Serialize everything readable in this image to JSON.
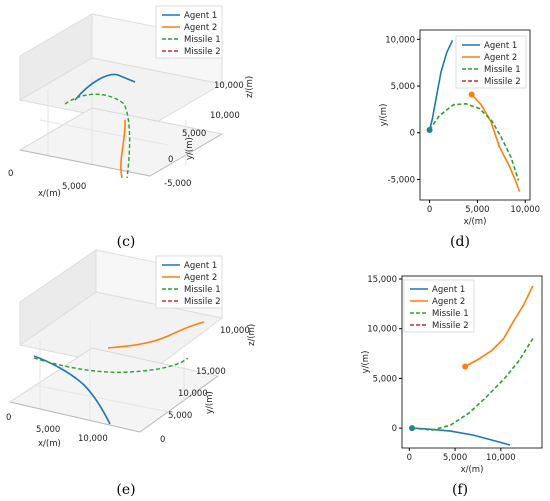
{
  "colors": {
    "agent1": "#1f77b4",
    "agent2": "#ff7f0e",
    "missile1": "#2ca02c",
    "missile2": "#d62728"
  },
  "panels": [
    {
      "letter": "(c)",
      "type": "line3d",
      "legend": [
        "Agent 1",
        "Agent 2",
        "Missile 1",
        "Missile 2"
      ],
      "xlabel": "x/(m)",
      "ylabel": "y/(m)",
      "zlabel": "z/(m)",
      "xticks": [
        "0",
        "5,000"
      ],
      "yticks": [
        "-5,000",
        "0",
        "5,000",
        "10,000"
      ],
      "zticks": [
        "10,000"
      ]
    },
    {
      "letter": "(d)",
      "type": "line",
      "legend": [
        "Agent 1",
        "Agent 2",
        "Missile 1",
        "Missile 2"
      ],
      "xlabel": "x/(m)",
      "ylabel": "y/(m)",
      "xticks": [
        "0",
        "5,000",
        "10,000"
      ],
      "yticks": [
        "10,000",
        "5,000",
        "0",
        "-5,000"
      ]
    },
    {
      "letter": "(e)",
      "type": "line3d",
      "legend": [
        "Agent 1",
        "Agent 2",
        "Missile 1",
        "Missile 2"
      ],
      "xlabel": "x/(m)",
      "ylabel": "y/(m)",
      "zlabel": "z/(m)",
      "xticks": [
        "0",
        "5,000",
        "10,000"
      ],
      "yticks": [
        "0",
        "5,000",
        "10,000",
        "15,000"
      ],
      "zticks": [
        "10,000"
      ]
    },
    {
      "letter": "(f)",
      "type": "line",
      "legend": [
        "Agent 1",
        "Agent 2",
        "Missile 1",
        "Missile 2"
      ],
      "xlabel": "x/(m)",
      "ylabel": "y/(m)",
      "xticks": [
        "0",
        "5,000",
        "10,000"
      ],
      "yticks": [
        "15,000",
        "10,000",
        "5,000",
        "0"
      ]
    }
  ],
  "chart_data": [
    {
      "type": "line",
      "title": "",
      "xlabel": "x/(m)",
      "ylabel": "y/(m)",
      "xlim": [
        -1000,
        10500
      ],
      "ylim": [
        -7200,
        11000
      ],
      "series": [
        {
          "name": "Agent 1",
          "x": [
            0,
            300,
            700,
            1200,
            1800,
            2400
          ],
          "y": [
            300,
            1500,
            3800,
            6500,
            8600,
            9900
          ],
          "start_marker": true
        },
        {
          "name": "Agent 2",
          "x": [
            4400,
            5400,
            6400,
            7300,
            8300,
            8900,
            9400
          ],
          "y": [
            4100,
            3000,
            1200,
            -1500,
            -3500,
            -4900,
            -6300
          ],
          "start_marker": true
        },
        {
          "name": "Missile 1",
          "x": [
            0,
            1000,
            2500,
            3800,
            5200,
            6500,
            7500,
            8500,
            9300
          ],
          "y": [
            300,
            1800,
            3000,
            3100,
            2600,
            1300,
            -500,
            -2600,
            -5100
          ],
          "dashed": true
        },
        {
          "name": "Missile 2",
          "x": [],
          "y": [],
          "dashed": true
        }
      ]
    },
    {
      "type": "line",
      "title": "",
      "xlabel": "x/(m)",
      "ylabel": "y/(m)",
      "xlim": [
        -800,
        14500
      ],
      "ylim": [
        -2000,
        15300
      ],
      "series": [
        {
          "name": "Agent 1",
          "x": [
            300,
            2000,
            4500,
            7000,
            9000,
            11000
          ],
          "y": [
            0,
            -100,
            -300,
            -700,
            -1200,
            -1700
          ],
          "start_marker": true
        },
        {
          "name": "Agent 2",
          "x": [
            6100,
            7500,
            9000,
            10300,
            11300,
            12500,
            13500
          ],
          "y": [
            6200,
            6900,
            7800,
            9000,
            10600,
            12400,
            14300
          ],
          "start_marker": true
        },
        {
          "name": "Missile 1",
          "x": [
            300,
            2500,
            4500,
            6500,
            8500,
            10500,
            12000,
            13500
          ],
          "y": [
            0,
            -200,
            300,
            1500,
            3200,
            5100,
            6800,
            9000
          ],
          "dashed": true
        },
        {
          "name": "Missile 2",
          "x": [],
          "y": [],
          "dashed": true
        }
      ]
    },
    {
      "type": "line3d",
      "title": "",
      "xlabel": "x/(m)",
      "ylabel": "y/(m)",
      "zlabel": "z/(m)",
      "series": [
        {
          "name": "Agent 1"
        },
        {
          "name": "Agent 2"
        },
        {
          "name": "Missile 1"
        },
        {
          "name": "Missile 2"
        }
      ]
    },
    {
      "type": "line3d",
      "title": "",
      "xlabel": "x/(m)",
      "ylabel": "y/(m)",
      "zlabel": "z/(m)",
      "series": [
        {
          "name": "Agent 1"
        },
        {
          "name": "Agent 2"
        },
        {
          "name": "Missile 1"
        },
        {
          "name": "Missile 2"
        }
      ]
    }
  ]
}
